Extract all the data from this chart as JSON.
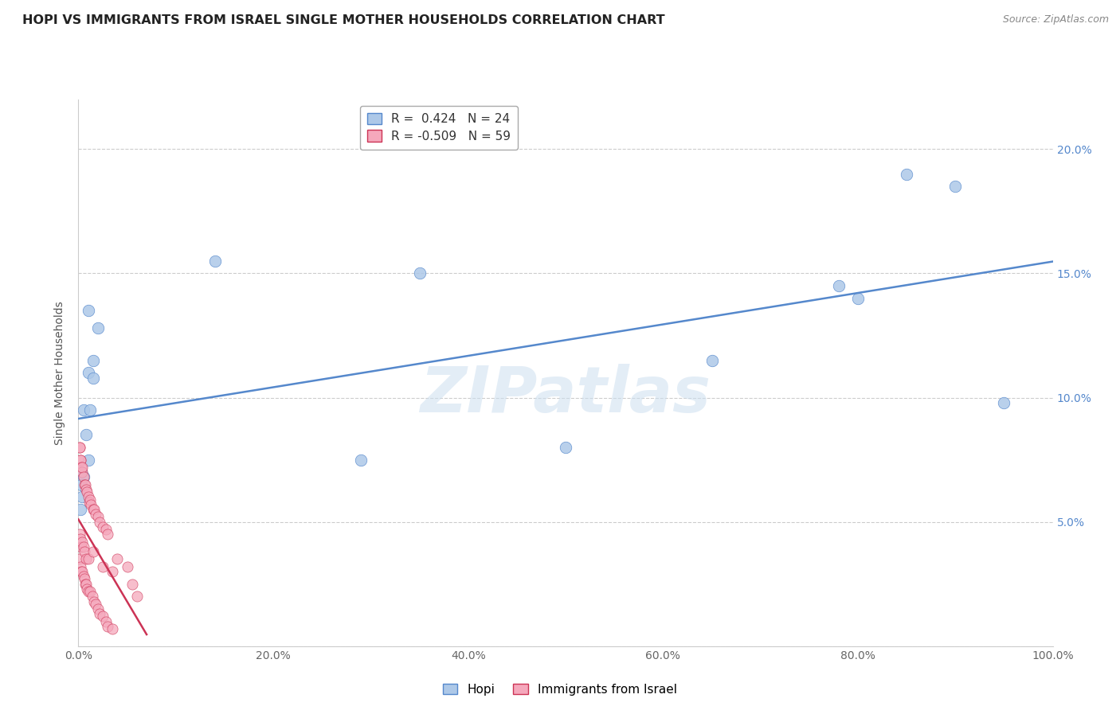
{
  "title": "HOPI VS IMMIGRANTS FROM ISRAEL SINGLE MOTHER HOUSEHOLDS CORRELATION CHART",
  "source": "Source: ZipAtlas.com",
  "ylabel": "Single Mother Households",
  "hopi_r": 0.424,
  "hopi_n": 24,
  "israel_r": -0.509,
  "israel_n": 59,
  "hopi_points": [
    [
      0.5,
      9.5
    ],
    [
      1.0,
      13.5
    ],
    [
      2.0,
      12.8
    ],
    [
      1.5,
      11.5
    ],
    [
      1.0,
      11.0
    ],
    [
      1.5,
      10.8
    ],
    [
      1.2,
      9.5
    ],
    [
      0.8,
      8.5
    ],
    [
      1.0,
      7.5
    ],
    [
      0.3,
      7.0
    ],
    [
      0.5,
      6.8
    ],
    [
      0.3,
      6.5
    ],
    [
      0.4,
      6.0
    ],
    [
      0.2,
      5.5
    ],
    [
      14.0,
      15.5
    ],
    [
      29.0,
      7.5
    ],
    [
      35.0,
      15.0
    ],
    [
      50.0,
      8.0
    ],
    [
      65.0,
      11.5
    ],
    [
      78.0,
      14.5
    ],
    [
      80.0,
      14.0
    ],
    [
      85.0,
      19.0
    ],
    [
      90.0,
      18.5
    ],
    [
      95.0,
      9.8
    ]
  ],
  "israel_points": [
    [
      0.1,
      8.0
    ],
    [
      0.15,
      8.0
    ],
    [
      0.2,
      7.5
    ],
    [
      0.25,
      7.5
    ],
    [
      0.3,
      7.2
    ],
    [
      0.35,
      7.0
    ],
    [
      0.4,
      7.2
    ],
    [
      0.5,
      6.8
    ],
    [
      0.6,
      6.5
    ],
    [
      0.7,
      6.5
    ],
    [
      0.8,
      6.3
    ],
    [
      0.9,
      6.2
    ],
    [
      1.0,
      6.0
    ],
    [
      1.1,
      5.8
    ],
    [
      1.2,
      5.9
    ],
    [
      1.3,
      5.7
    ],
    [
      1.5,
      5.5
    ],
    [
      1.6,
      5.5
    ],
    [
      1.8,
      5.3
    ],
    [
      2.0,
      5.2
    ],
    [
      2.2,
      5.0
    ],
    [
      2.5,
      4.8
    ],
    [
      2.8,
      4.7
    ],
    [
      3.0,
      4.5
    ],
    [
      0.1,
      3.5
    ],
    [
      0.2,
      3.2
    ],
    [
      0.3,
      3.0
    ],
    [
      0.4,
      3.0
    ],
    [
      0.5,
      2.8
    ],
    [
      0.6,
      2.7
    ],
    [
      0.7,
      2.5
    ],
    [
      0.8,
      2.5
    ],
    [
      0.9,
      2.3
    ],
    [
      1.0,
      2.2
    ],
    [
      1.2,
      2.2
    ],
    [
      1.4,
      2.0
    ],
    [
      1.6,
      1.8
    ],
    [
      1.8,
      1.7
    ],
    [
      2.0,
      1.5
    ],
    [
      2.2,
      1.3
    ],
    [
      2.5,
      1.2
    ],
    [
      2.8,
      1.0
    ],
    [
      3.0,
      0.8
    ],
    [
      3.5,
      0.7
    ],
    [
      0.1,
      4.5
    ],
    [
      0.2,
      4.3
    ],
    [
      0.3,
      4.0
    ],
    [
      0.4,
      4.2
    ],
    [
      0.5,
      4.0
    ],
    [
      0.6,
      3.8
    ],
    [
      0.8,
      3.5
    ],
    [
      1.0,
      3.5
    ],
    [
      1.5,
      3.8
    ],
    [
      2.5,
      3.2
    ],
    [
      3.5,
      3.0
    ],
    [
      4.0,
      3.5
    ],
    [
      5.0,
      3.2
    ],
    [
      5.5,
      2.5
    ],
    [
      6.0,
      2.0
    ]
  ],
  "hopi_color": "#adc8e8",
  "israel_color": "#f5a8bc",
  "hopi_line_color": "#5588cc",
  "israel_line_color": "#cc3355",
  "background_color": "#ffffff",
  "grid_color": "#cccccc",
  "xlim": [
    0,
    100
  ],
  "ylim": [
    0,
    22
  ],
  "xticks": [
    0,
    20,
    40,
    60,
    80,
    100
  ],
  "yticks": [
    0,
    5,
    10,
    15,
    20
  ],
  "ytick_labels_right": [
    "",
    "5.0%",
    "10.0%",
    "15.0%",
    "20.0%"
  ],
  "xtick_labels": [
    "0.0%",
    "20.0%",
    "40.0%",
    "60.0%",
    "80.0%",
    "100.0%"
  ],
  "watermark": "ZIPatlas",
  "title_fontsize": 11.5,
  "label_fontsize": 10,
  "tick_fontsize": 10,
  "source_fontsize": 9
}
